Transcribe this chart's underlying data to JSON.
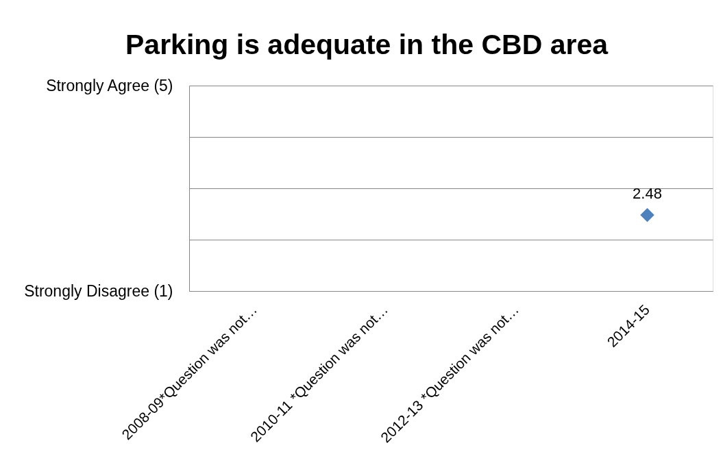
{
  "chart_data": {
    "type": "scatter",
    "title": "Parking is adequate in the CBD area",
    "categories": [
      "2008-09*Question was not…",
      "2010-11 *Question was not…",
      "2012-13 *Question was not…",
      "2014-15"
    ],
    "values": [
      null,
      null,
      null,
      2.48
    ],
    "color": "#4f81bd",
    "marker": "diamond",
    "data_labels": true,
    "ylim": [
      1,
      5
    ],
    "yticks": [
      {
        "value": 1,
        "label": "Strongly Disagree (1)"
      },
      {
        "value": 2,
        "label": null
      },
      {
        "value": 3,
        "label": null
      },
      {
        "value": 4,
        "label": null
      },
      {
        "value": 5,
        "label": "Strongly Agree (5)"
      }
    ],
    "grid": "y"
  }
}
